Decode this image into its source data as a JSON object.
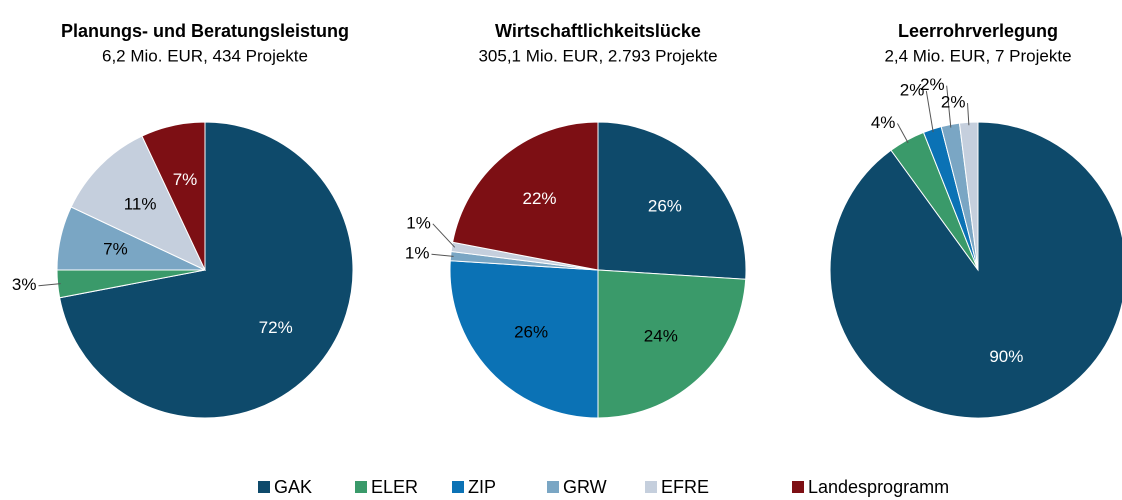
{
  "chart_data": [
    {
      "type": "pie",
      "title": "Planungs- und Beratungsleistung",
      "subtitle": "6,2 Mio. EUR, 434 Projekte",
      "categories": [
        "GAK",
        "ELER",
        "ZIP",
        "GRW",
        "EFRE",
        "Landesprogramm"
      ],
      "colors": [
        "#0e4a6b",
        "#3a9a6a",
        "#0b72b5",
        "#7aa6c4",
        "#c5cfdd",
        "#7d0f14"
      ],
      "values": [
        72,
        3,
        0,
        7,
        11,
        7
      ],
      "value_labels": [
        "72%",
        "3%",
        null,
        "7%",
        "11%",
        "7%"
      ]
    },
    {
      "type": "pie",
      "title": "Wirtschaftlichkeitslücke",
      "subtitle": "305,1 Mio. EUR, 2.793 Projekte",
      "categories": [
        "GAK",
        "ELER",
        "ZIP",
        "GRW",
        "EFRE",
        "Landesprogramm"
      ],
      "colors": [
        "#0e4a6b",
        "#3a9a6a",
        "#0b72b5",
        "#7aa6c4",
        "#c5cfdd",
        "#7d0f14"
      ],
      "values": [
        26,
        24,
        26,
        1,
        1,
        22
      ],
      "value_labels": [
        "26%",
        "24%",
        "26%",
        "1%",
        "1%",
        "22%"
      ]
    },
    {
      "type": "pie",
      "title": "Leerrohrverlegung",
      "subtitle": "2,4 Mio. EUR, 7 Projekte",
      "categories": [
        "GAK",
        "ELER",
        "ZIP",
        "GRW",
        "EFRE",
        "Landesprogramm"
      ],
      "colors": [
        "#0e4a6b",
        "#3a9a6a",
        "#0b72b5",
        "#7aa6c4",
        "#c5cfdd",
        "#7d0f14"
      ],
      "values": [
        90,
        4,
        2,
        2,
        2,
        0
      ],
      "value_labels": [
        "90%",
        "4%",
        "2%",
        "2%",
        "2%",
        null
      ]
    }
  ]
}
